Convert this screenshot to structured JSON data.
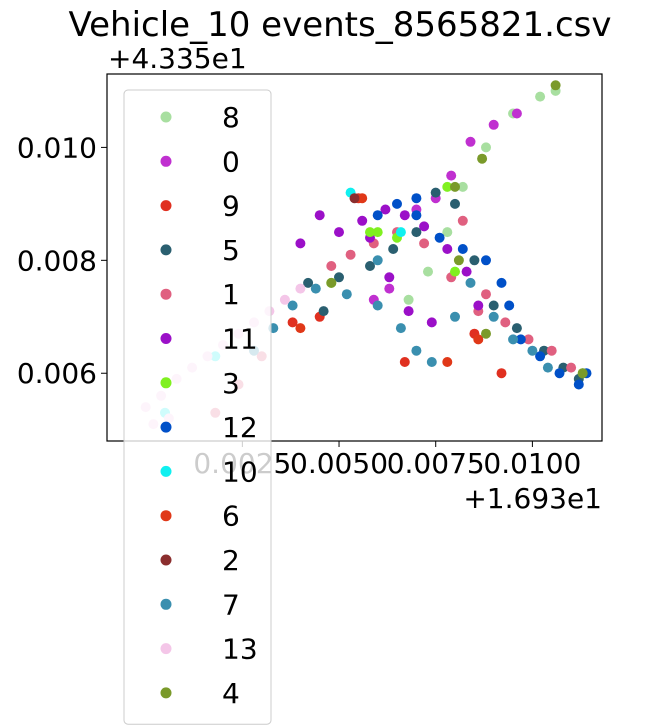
{
  "chart_data": {
    "type": "scatter",
    "title": "Vehicle_10 events_8565821.csv",
    "xlabel": "",
    "ylabel": "",
    "x_offset_label": "+1.693e1",
    "y_offset_label": "+4.335e1",
    "xlim": [
      -0.001,
      0.0118
    ],
    "ylim": [
      0.0048,
      0.0113
    ],
    "x_ticks": [
      {
        "value": 0.0025,
        "label": "0.0025"
      },
      {
        "value": 0.005,
        "label": "0.0050"
      },
      {
        "value": 0.0075,
        "label": "0.0075"
      },
      {
        "value": 0.01,
        "label": "0.0100"
      }
    ],
    "y_ticks": [
      {
        "value": 0.006,
        "label": "0.006"
      },
      {
        "value": 0.008,
        "label": "0.008"
      },
      {
        "value": 0.01,
        "label": "0.010"
      }
    ],
    "legend_position": "upper left (overflowing below axes)",
    "grid": false,
    "series": [
      {
        "name": "8",
        "color": "#a8dfa0",
        "points": [
          [
            0.0068,
            0.0073
          ],
          [
            0.0073,
            0.0078
          ],
          [
            0.0078,
            0.0085
          ],
          [
            0.0082,
            0.0093
          ],
          [
            0.0088,
            0.01
          ],
          [
            0.0095,
            0.0106
          ],
          [
            0.0102,
            0.0109
          ],
          [
            0.0106,
            0.011
          ]
        ]
      },
      {
        "name": "0",
        "color": "#c030d0",
        "points": [
          [
            0.007,
            0.0089
          ],
          [
            0.0075,
            0.0091
          ],
          [
            0.0079,
            0.0095
          ],
          [
            0.0084,
            0.0101
          ],
          [
            0.009,
            0.0104
          ],
          [
            0.0096,
            0.0106
          ],
          [
            0.0059,
            0.0073
          ],
          [
            0.0063,
            0.0075
          ]
        ]
      },
      {
        "name": "9",
        "color": "#e03020",
        "points": [
          [
            0.0055,
            0.0091
          ],
          [
            0.0045,
            0.007
          ],
          [
            0.0067,
            0.0062
          ],
          [
            0.0085,
            0.0067
          ],
          [
            0.0038,
            0.0069
          ],
          [
            0.0092,
            0.006
          ]
        ]
      },
      {
        "name": "5",
        "color": "#2a5f70",
        "points": [
          [
            0.0075,
            0.0092
          ],
          [
            0.008,
            0.009
          ],
          [
            0.0085,
            0.008
          ],
          [
            0.009,
            0.0072
          ],
          [
            0.0096,
            0.0068
          ],
          [
            0.0103,
            0.0064
          ],
          [
            0.0108,
            0.0061
          ],
          [
            0.0112,
            0.0059
          ],
          [
            0.0042,
            0.0076
          ],
          [
            0.005,
            0.0077
          ],
          [
            0.0058,
            0.0079
          ],
          [
            0.0064,
            0.0082
          ],
          [
            0.007,
            0.0085
          ],
          [
            0.0046,
            0.0071
          ]
        ]
      },
      {
        "name": "1",
        "color": "#e06080",
        "points": [
          [
            0.0048,
            0.0079
          ],
          [
            0.0053,
            0.0081
          ],
          [
            0.0059,
            0.0083
          ],
          [
            0.0065,
            0.0085
          ],
          [
            0.0072,
            0.0083
          ],
          [
            0.0079,
            0.0077
          ],
          [
            0.0086,
            0.0071
          ],
          [
            0.0093,
            0.0069
          ],
          [
            0.0099,
            0.0066
          ],
          [
            0.0105,
            0.0064
          ],
          [
            0.011,
            0.0061
          ],
          [
            0.003,
            0.0063
          ],
          [
            0.0024,
            0.0058
          ],
          [
            0.0018,
            0.0053
          ],
          [
            0.0082,
            0.0087
          ],
          [
            0.0088,
            0.0074
          ]
        ]
      },
      {
        "name": "11",
        "color": "#9b10c8",
        "points": [
          [
            0.005,
            0.0085
          ],
          [
            0.0056,
            0.0087
          ],
          [
            0.0062,
            0.0089
          ],
          [
            0.0067,
            0.0088
          ],
          [
            0.0072,
            0.0086
          ],
          [
            0.0078,
            0.0082
          ],
          [
            0.0083,
            0.0078
          ],
          [
            0.0086,
            0.0072
          ],
          [
            0.0074,
            0.0069
          ],
          [
            0.0068,
            0.0071
          ],
          [
            0.0063,
            0.0077
          ],
          [
            0.0058,
            0.0084
          ],
          [
            0.0045,
            0.0088
          ],
          [
            0.004,
            0.0083
          ]
        ]
      },
      {
        "name": "3",
        "color": "#80f020",
        "points": [
          [
            0.0058,
            0.0085
          ],
          [
            0.006,
            0.0085
          ],
          [
            0.0048,
            0.0076
          ],
          [
            0.0113,
            0.006
          ],
          [
            0.0078,
            0.0093
          ],
          [
            0.0065,
            0.0084
          ],
          [
            0.008,
            0.0078
          ]
        ]
      },
      {
        "name": "12",
        "color": "#0050c8",
        "points": [
          [
            0.006,
            0.0088
          ],
          [
            0.0065,
            0.009
          ],
          [
            0.007,
            0.0088
          ],
          [
            0.0076,
            0.0084
          ],
          [
            0.0082,
            0.0082
          ],
          [
            0.0088,
            0.008
          ],
          [
            0.0092,
            0.0076
          ],
          [
            0.0094,
            0.0072
          ],
          [
            0.0097,
            0.0066
          ],
          [
            0.0102,
            0.0063
          ],
          [
            0.0107,
            0.006
          ],
          [
            0.0112,
            0.0058
          ],
          [
            0.0114,
            0.006
          ],
          [
            0.007,
            0.0091
          ]
        ]
      },
      {
        "name": "10",
        "color": "#10f0f0",
        "points": [
          [
            0.0053,
            0.0092
          ],
          [
            0.0066,
            0.0085
          ],
          [
            0.0005,
            0.0053
          ],
          [
            0.0018,
            0.0063
          ]
        ]
      },
      {
        "name": "6",
        "color": "#e03818",
        "points": [
          [
            0.0078,
            0.0062
          ],
          [
            0.004,
            0.0068
          ],
          [
            0.0056,
            0.0091
          ],
          [
            0.0086,
            0.0066
          ]
        ]
      },
      {
        "name": "2",
        "color": "#8b2e2e",
        "points": [
          [
            0.0054,
            0.0091
          ]
        ]
      },
      {
        "name": "7",
        "color": "#3a8faf",
        "points": [
          [
            0.0044,
            0.0075
          ],
          [
            0.0052,
            0.0074
          ],
          [
            0.006,
            0.0072
          ],
          [
            0.0066,
            0.0068
          ],
          [
            0.007,
            0.0064
          ],
          [
            0.0074,
            0.0062
          ],
          [
            0.008,
            0.007
          ],
          [
            0.0084,
            0.0076
          ],
          [
            0.009,
            0.007
          ],
          [
            0.0095,
            0.0066
          ],
          [
            0.01,
            0.0064
          ],
          [
            0.0104,
            0.0061
          ],
          [
            0.0038,
            0.0072
          ],
          [
            0.0033,
            0.0068
          ],
          [
            0.0028,
            0.0064
          ],
          [
            0.006,
            0.008
          ]
        ]
      },
      {
        "name": "13",
        "color": "#f4c6e8",
        "points": [
          [
            0.0,
            0.0054
          ],
          [
            0.0004,
            0.0056
          ],
          [
            0.0008,
            0.0059
          ],
          [
            0.0012,
            0.0061
          ],
          [
            0.0016,
            0.0063
          ],
          [
            0.002,
            0.0065
          ],
          [
            0.0024,
            0.0067
          ],
          [
            0.0028,
            0.0069
          ],
          [
            0.0032,
            0.0071
          ],
          [
            0.0036,
            0.0073
          ],
          [
            0.004,
            0.0075
          ],
          [
            0.0002,
            0.0051
          ],
          [
            0.0006,
            0.0052
          ]
        ]
      },
      {
        "name": "4",
        "color": "#7a9a2a",
        "points": [
          [
            0.008,
            0.0093
          ],
          [
            0.0087,
            0.0098
          ],
          [
            0.0106,
            0.0111
          ],
          [
            0.0088,
            0.0067
          ],
          [
            0.0113,
            0.006
          ],
          [
            0.0048,
            0.0076
          ],
          [
            0.0081,
            0.008
          ]
        ]
      }
    ]
  }
}
